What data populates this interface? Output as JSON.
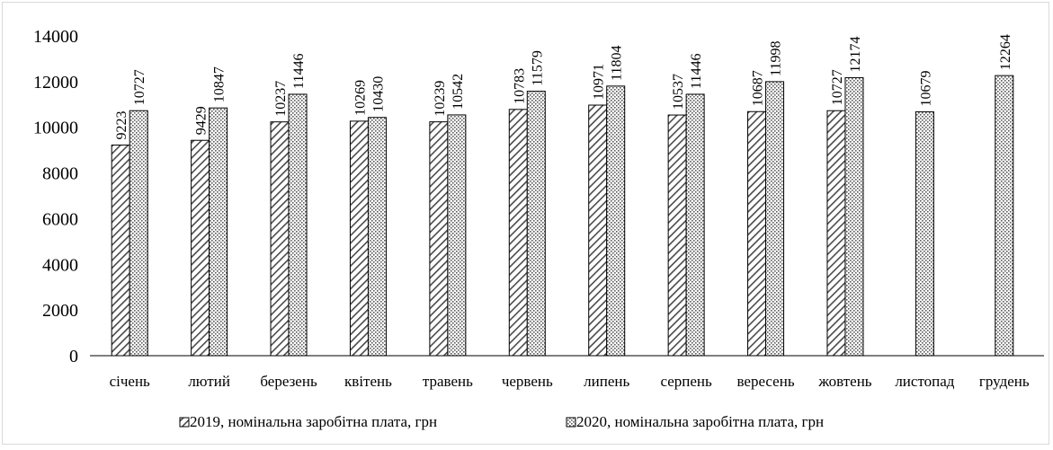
{
  "chart_data": {
    "type": "bar",
    "categories": [
      "січень",
      "лютий",
      "березень",
      "квітень",
      "травень",
      "червень",
      "липень",
      "серпень",
      "вересень",
      "жовтень",
      "листопад",
      "грудень"
    ],
    "series": [
      {
        "name": "2019, номінальна заробітна плата, грн",
        "values": [
          9223,
          9429,
          10237,
          10269,
          10239,
          10783,
          10971,
          10537,
          10687,
          10727,
          null,
          null
        ],
        "pattern": "diagonal-hatch"
      },
      {
        "name": "2020, номінальна заробітна плата, грн",
        "values": [
          10727,
          10847,
          11446,
          10430,
          10542,
          11579,
          11804,
          11446,
          11998,
          12174,
          10679,
          12264
        ],
        "pattern": "dotted"
      }
    ],
    "yticks": [
      0,
      2000,
      4000,
      6000,
      8000,
      10000,
      12000,
      14000
    ],
    "ylim": [
      0,
      14000
    ],
    "grid": false,
    "legend_position": "bottom",
    "data_labels": true,
    "data_label_rotation": "vertical",
    "colors": {
      "bar_outline": "#000000",
      "pattern_ink": "#555555",
      "frame": "#d9d9d9"
    }
  }
}
